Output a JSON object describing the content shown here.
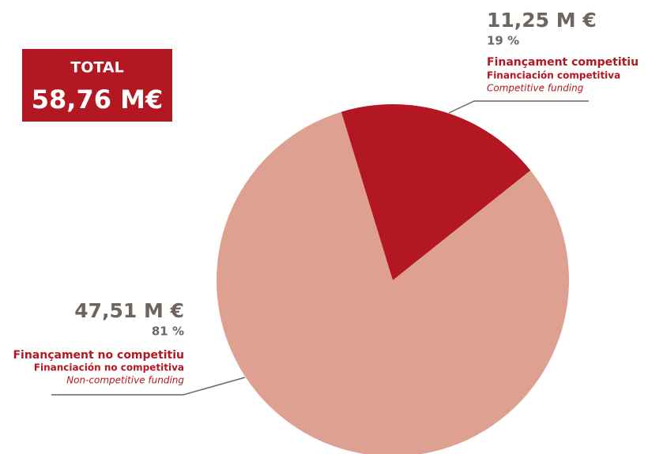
{
  "chart_data": {
    "type": "pie",
    "total": {
      "label": "TOTAL",
      "value": "58,76 M€"
    },
    "categories": [
      "Finançament competitiu",
      "Finançament no competitiu"
    ],
    "categories_es": [
      "Financiación competitiva",
      "Financiación no competitiva"
    ],
    "categories_en": [
      "Competitive funding",
      "Non-competitive funding"
    ],
    "amount_labels": [
      "11,25 M €",
      "47,51 M €"
    ],
    "values": [
      19,
      81
    ],
    "value_labels": [
      "19 %",
      "81 %"
    ],
    "colors": [
      "#b31722",
      "#dea090"
    ]
  }
}
